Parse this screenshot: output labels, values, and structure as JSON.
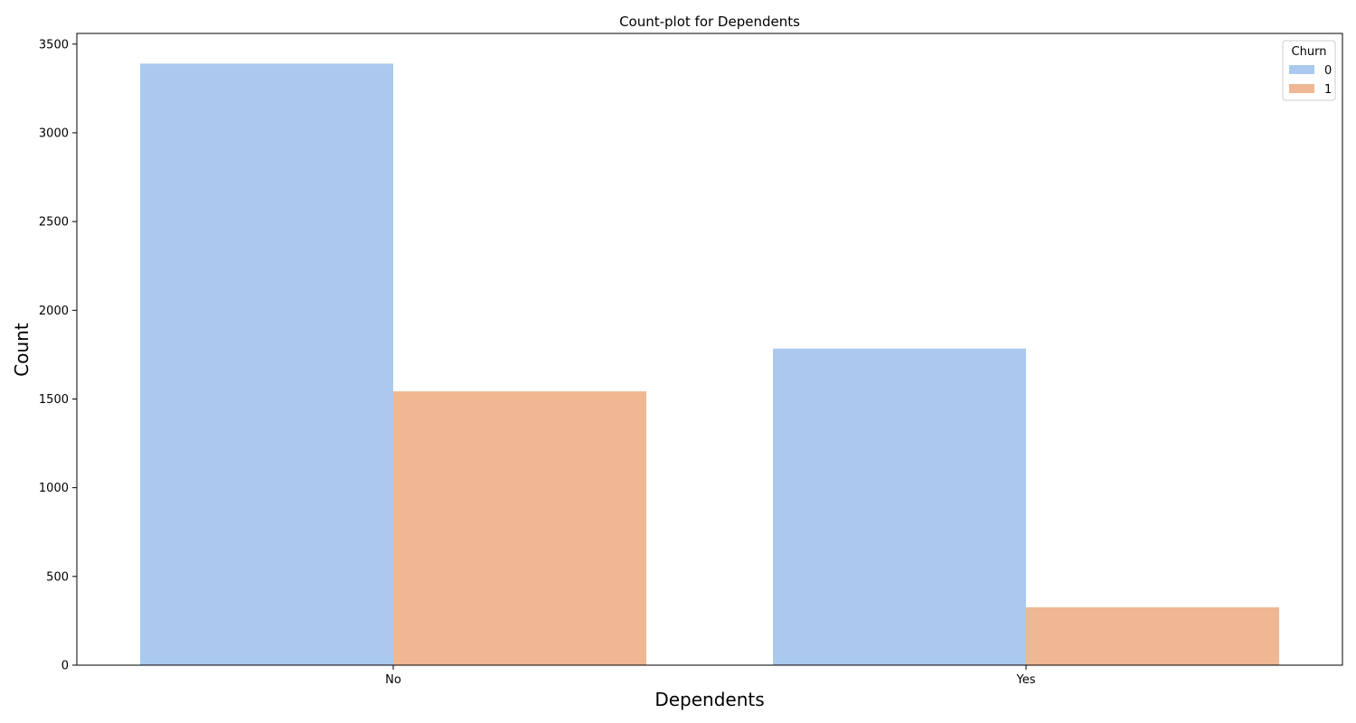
{
  "chart_data": {
    "type": "bar",
    "title": "Count-plot for Dependents",
    "xlabel": "Dependents",
    "ylabel": "Count",
    "categories": [
      "No",
      "Yes"
    ],
    "series": [
      {
        "name": "0",
        "values": [
          3390,
          1784
        ]
      },
      {
        "name": "1",
        "values": [
          1543,
          326
        ]
      }
    ],
    "ylim": [
      0,
      3560
    ],
    "yticks": [
      0,
      500,
      1000,
      1500,
      2000,
      2500,
      3000,
      3500
    ],
    "legend": {
      "title": "Churn",
      "position": "top-right"
    },
    "colors": [
      "#abc9ee",
      "#f0b793"
    ],
    "grid": false
  }
}
